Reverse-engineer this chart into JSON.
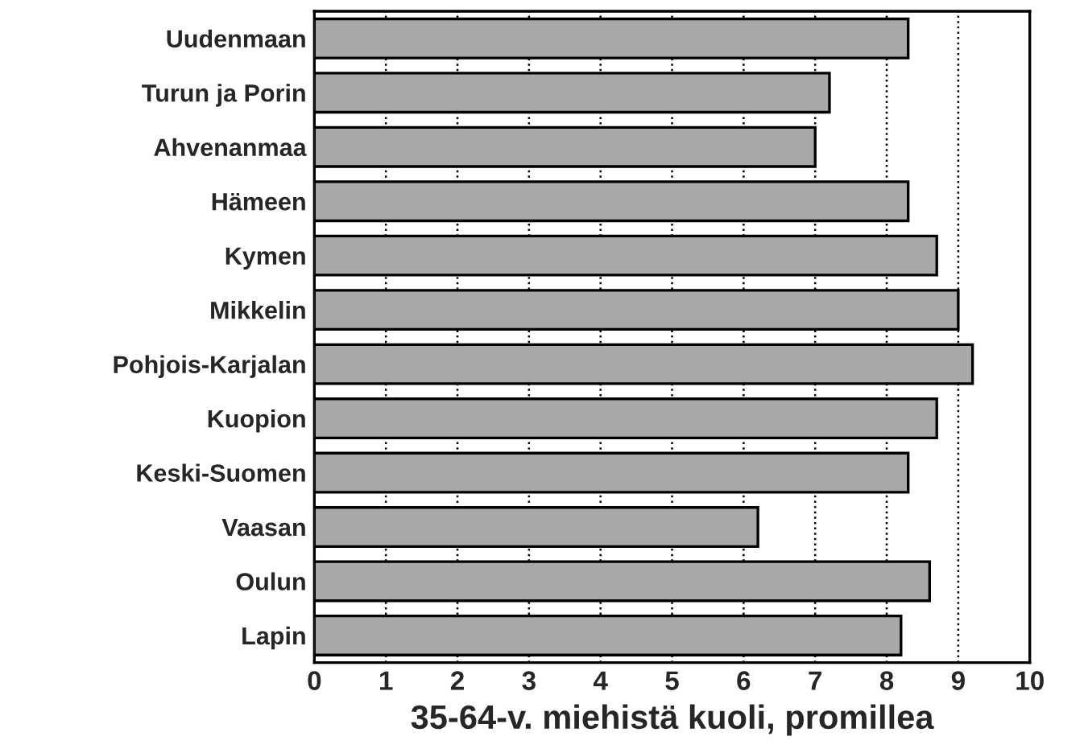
{
  "chart_data": {
    "type": "bar",
    "orientation": "horizontal",
    "xlabel": "35-64-v. miehistä kuoli, promillea",
    "categories": [
      "Uudenmaan",
      "Turun ja Porin",
      "Ahvenanmaa",
      "Hämeen",
      "Kymen",
      "Mikkelin",
      "Pohjois-Karjalan",
      "Kuopion",
      "Keski-Suomen",
      "Vaasan",
      "Oulun",
      "Lapin"
    ],
    "values": [
      8.3,
      7.2,
      7.0,
      8.3,
      8.7,
      9.0,
      9.2,
      8.7,
      8.3,
      6.2,
      8.6,
      8.2
    ],
    "color": "#a8a8a8",
    "xlim": [
      0,
      10
    ],
    "xticks": [
      0,
      1,
      2,
      3,
      4,
      5,
      6,
      7,
      8,
      9,
      10
    ],
    "grid": "x"
  }
}
